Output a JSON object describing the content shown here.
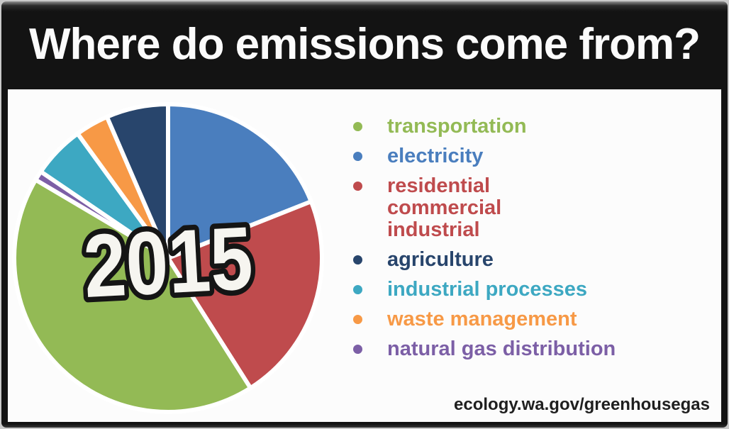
{
  "header": {
    "title": "Where do emissions come from?"
  },
  "footer": {
    "url": "ecology.wa.gov/greenhousegas"
  },
  "colors": {
    "frame_background": "#141414",
    "header_text": "#FBFBFB",
    "content_background": "#FCFCFC",
    "page_edge": "#C9C9C9",
    "slice_gap": "#FFFFFF",
    "year_label_fill": "#F6F5F0",
    "year_label_outline": "#151515",
    "footer_text": "#1F1F1F"
  },
  "chart_data": {
    "type": "pie",
    "title": "Where do emissions come from?",
    "center_label": "2015",
    "start": "12 o'clock, clockwise",
    "legend_position": "right",
    "slices": [
      {
        "label": "electricity",
        "color": "#4A7EBE",
        "percent": 19
      },
      {
        "label": "residential commercial industrial",
        "color": "#BF4B4D",
        "percent": 22
      },
      {
        "label": "transportation",
        "color": "#93BA55",
        "percent": 42.5
      },
      {
        "label": "natural gas distribution",
        "color": "#7C5FA6",
        "percent": 1
      },
      {
        "label": "industrial processes",
        "color": "#3DA8C2",
        "percent": 5.5
      },
      {
        "label": "waste management",
        "color": "#F79946",
        "percent": 3.5
      },
      {
        "label": "agriculture",
        "color": "#28456C",
        "percent": 6.5
      }
    ],
    "legend": [
      {
        "lines": [
          "transportation"
        ],
        "color": "#93BA55"
      },
      {
        "lines": [
          "electricity"
        ],
        "color": "#4A7EBE"
      },
      {
        "lines": [
          "residential",
          "commercial",
          "industrial"
        ],
        "color": "#BF4B4D"
      },
      {
        "lines": [
          "agriculture"
        ],
        "color": "#28456C"
      },
      {
        "lines": [
          "industrial processes"
        ],
        "color": "#3DA8C2"
      },
      {
        "lines": [
          "waste management"
        ],
        "color": "#F79946"
      },
      {
        "lines": [
          "natural gas distribution"
        ],
        "color": "#7C5FA6"
      }
    ]
  }
}
